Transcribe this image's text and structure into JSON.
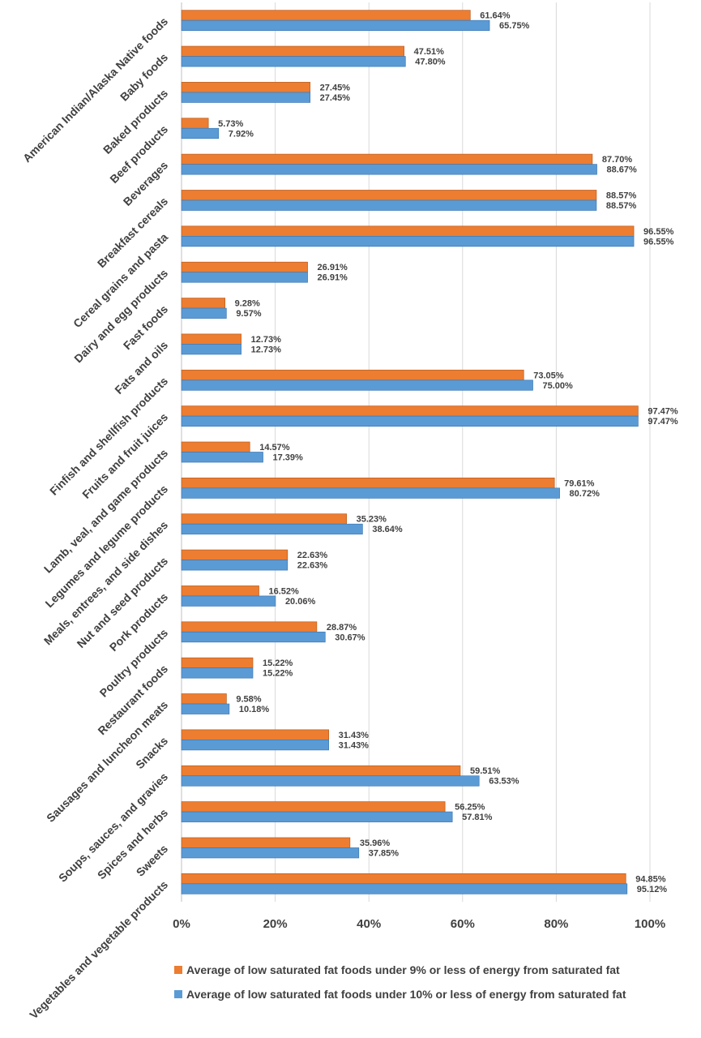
{
  "chart_data": {
    "type": "bar",
    "orientation": "horizontal",
    "categories": [
      "American Indian/Alaska Native foods",
      "Baby foods",
      "Baked products",
      "Beef products",
      "Beverages",
      "Breakfast cereals",
      "Cereal grains and pasta",
      "Dairy and egg products",
      "Fast foods",
      "Fats and oils",
      "Finfish and shellfish products",
      "Fruits and fruit juices",
      "Lamb, veal, and game products",
      "Legumes and legume products",
      "Meals, entrees, and side dishes",
      "Nut and seed products",
      "Pork products",
      "Poultry products",
      "Restaurant foods",
      "Sausages and luncheon meats",
      "Snacks",
      "Soups, sauces, and gravies",
      "Spices and herbs",
      "Sweets",
      "Vegetables and vegetable products"
    ],
    "series": [
      {
        "name": "Average of low saturated fat foods under 9% or less of energy from saturated fat",
        "color": "#ed7d31",
        "values": [
          61.64,
          47.51,
          27.45,
          5.73,
          87.7,
          88.57,
          96.55,
          26.91,
          9.28,
          12.73,
          73.05,
          97.47,
          14.57,
          79.61,
          35.23,
          22.63,
          16.52,
          28.87,
          15.22,
          9.58,
          31.43,
          59.51,
          56.25,
          35.96,
          94.85
        ],
        "labels": [
          "61.64%",
          "47.51%",
          "27.45%",
          "5.73%",
          "87.70%",
          "88.57%",
          "96.55%",
          "26.91%",
          "9.28%",
          "12.73%",
          "73.05%",
          "97.47%",
          "14.57%",
          "79.61%",
          "35.23%",
          "22.63%",
          "16.52%",
          "28.87%",
          "15.22%",
          "9.58%",
          "31.43%",
          "59.51%",
          "56.25%",
          "35.96%",
          "94.85%"
        ]
      },
      {
        "name": "Average of low saturated fat foods under 10% or less of energy from saturated fat",
        "color": "#5b9bd5",
        "values": [
          65.75,
          47.8,
          27.45,
          7.92,
          88.67,
          88.57,
          96.55,
          26.91,
          9.57,
          12.73,
          75.0,
          97.47,
          17.39,
          80.72,
          38.64,
          22.63,
          20.06,
          30.67,
          15.22,
          10.18,
          31.43,
          63.53,
          57.81,
          37.85,
          95.12
        ],
        "labels": [
          "65.75%",
          "47.80%",
          "27.45%",
          "7.92%",
          "88.67%",
          "88.57%",
          "96.55%",
          "26.91%",
          "9.57%",
          "12.73%",
          "75.00%",
          "97.47%",
          "17.39%",
          "80.72%",
          "38.64%",
          "22.63%",
          "20.06%",
          "30.67%",
          "15.22%",
          "10.18%",
          "31.43%",
          "63.53%",
          "57.81%",
          "37.85%",
          "95.12%"
        ]
      }
    ],
    "xlim": [
      0,
      100
    ],
    "xticks": [
      0,
      20,
      40,
      60,
      80,
      100
    ],
    "xtick_labels": [
      "0%",
      "20%",
      "40%",
      "60%",
      "80%",
      "100%"
    ],
    "grid": true,
    "legend_position": "bottom"
  }
}
